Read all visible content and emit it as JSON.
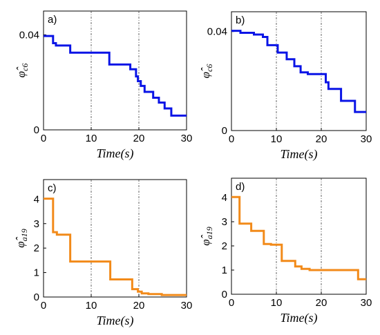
{
  "colors": {
    "blue": "#0a14e6",
    "orange": "#f28a19",
    "axis": "#000000",
    "vline": "#404040"
  },
  "chart_data": [
    {
      "type": "line",
      "panel_label": "a)",
      "xlabel": "Time(s)",
      "ylabel_base": "φ",
      "ylabel_sub": "c6",
      "xlim": [
        0,
        30
      ],
      "ylim": [
        0,
        0.05
      ],
      "xticks": [
        0,
        10,
        20,
        30
      ],
      "yticks": [
        0,
        0.04
      ],
      "ytick_labels": [
        "0",
        "0.04"
      ],
      "vlines": [
        10,
        20
      ],
      "color": "#0a14e6",
      "x": [
        0,
        2,
        2,
        2.6,
        2.6,
        5.6,
        5.6,
        13.8,
        13.8,
        18.2,
        18.2,
        19.4,
        19.4,
        19.8,
        19.8,
        20.4,
        20.4,
        21.2,
        21.2,
        23.0,
        23.0,
        24.2,
        24.2,
        25.4,
        25.4,
        26.8,
        26.8,
        30
      ],
      "y": [
        0.0395,
        0.0395,
        0.0365,
        0.0365,
        0.0355,
        0.0355,
        0.0325,
        0.0325,
        0.0275,
        0.0275,
        0.0255,
        0.0255,
        0.0225,
        0.0225,
        0.0205,
        0.0205,
        0.0185,
        0.0185,
        0.016,
        0.016,
        0.0135,
        0.0135,
        0.0115,
        0.0115,
        0.009,
        0.009,
        0.006,
        0.006
      ]
    },
    {
      "type": "line",
      "panel_label": "b)",
      "xlabel": "Time(s)",
      "ylabel_base": "φ",
      "ylabel_sub": "c6",
      "xlim": [
        0,
        30
      ],
      "ylim": [
        0,
        0.048
      ],
      "xticks": [
        0,
        10,
        20,
        30
      ],
      "yticks": [
        0,
        0.04
      ],
      "ytick_labels": [
        "0",
        "0.04"
      ],
      "vlines": [
        10,
        20
      ],
      "color": "#0a14e6",
      "x": [
        0,
        2,
        2,
        5,
        5,
        7,
        7,
        8,
        8,
        10.3,
        10.3,
        12.3,
        12.3,
        14,
        14,
        15.4,
        15.4,
        17,
        17,
        21,
        21,
        21.6,
        21.6,
        24.4,
        24.4,
        27.5,
        27.5,
        30
      ],
      "y": [
        0.0403,
        0.0403,
        0.0395,
        0.0395,
        0.0388,
        0.0388,
        0.0378,
        0.0378,
        0.0345,
        0.0345,
        0.0315,
        0.0315,
        0.0288,
        0.0288,
        0.026,
        0.026,
        0.0235,
        0.0235,
        0.0228,
        0.0228,
        0.0195,
        0.0195,
        0.0168,
        0.0168,
        0.012,
        0.012,
        0.0075,
        0.0075
      ]
    },
    {
      "type": "line",
      "panel_label": "c)",
      "xlabel": "Time(s)",
      "ylabel_base": "φ",
      "ylabel_sub": "a19",
      "xlim": [
        0,
        30
      ],
      "ylim": [
        0,
        4.8
      ],
      "xticks": [
        0,
        10,
        20,
        30
      ],
      "yticks": [
        0,
        1,
        2,
        3,
        4
      ],
      "ytick_labels": [
        "0",
        "1",
        "2",
        "3",
        "4"
      ],
      "vlines": [
        10,
        20
      ],
      "color": "#f28a19",
      "x": [
        0,
        2,
        2,
        2.8,
        2.8,
        5.6,
        5.6,
        14.0,
        14.0,
        18.6,
        18.6,
        19.8,
        19.8,
        20.6,
        20.6,
        22,
        22,
        24.8,
        24.8,
        30
      ],
      "y": [
        4.02,
        4.02,
        2.65,
        2.65,
        2.55,
        2.55,
        1.45,
        1.45,
        0.72,
        0.72,
        0.32,
        0.32,
        0.22,
        0.22,
        0.15,
        0.15,
        0.12,
        0.12,
        0.08,
        0.08
      ]
    },
    {
      "type": "line",
      "panel_label": "d)",
      "xlabel": "Time(s)",
      "ylabel_base": "φ",
      "ylabel_sub": "a19",
      "xlim": [
        0,
        30
      ],
      "ylim": [
        0,
        4.8
      ],
      "xticks": [
        0,
        10,
        20,
        30
      ],
      "yticks": [
        0,
        1,
        2,
        3,
        4
      ],
      "ytick_labels": [
        "0",
        "1",
        "2",
        "3",
        "4"
      ],
      "vlines": [
        10,
        20
      ],
      "color": "#f28a19",
      "x": [
        0,
        1.8,
        1.8,
        4.4,
        4.4,
        7.2,
        7.2,
        8.8,
        8.8,
        11.2,
        11.2,
        14.2,
        14.2,
        15.6,
        15.6,
        17.4,
        17.4,
        28.2,
        28.2,
        30
      ],
      "y": [
        4.02,
        4.02,
        2.92,
        2.92,
        2.62,
        2.62,
        2.08,
        2.08,
        2.05,
        2.05,
        1.38,
        1.38,
        1.15,
        1.15,
        1.05,
        1.05,
        1.0,
        1.0,
        0.62,
        0.62
      ]
    }
  ]
}
